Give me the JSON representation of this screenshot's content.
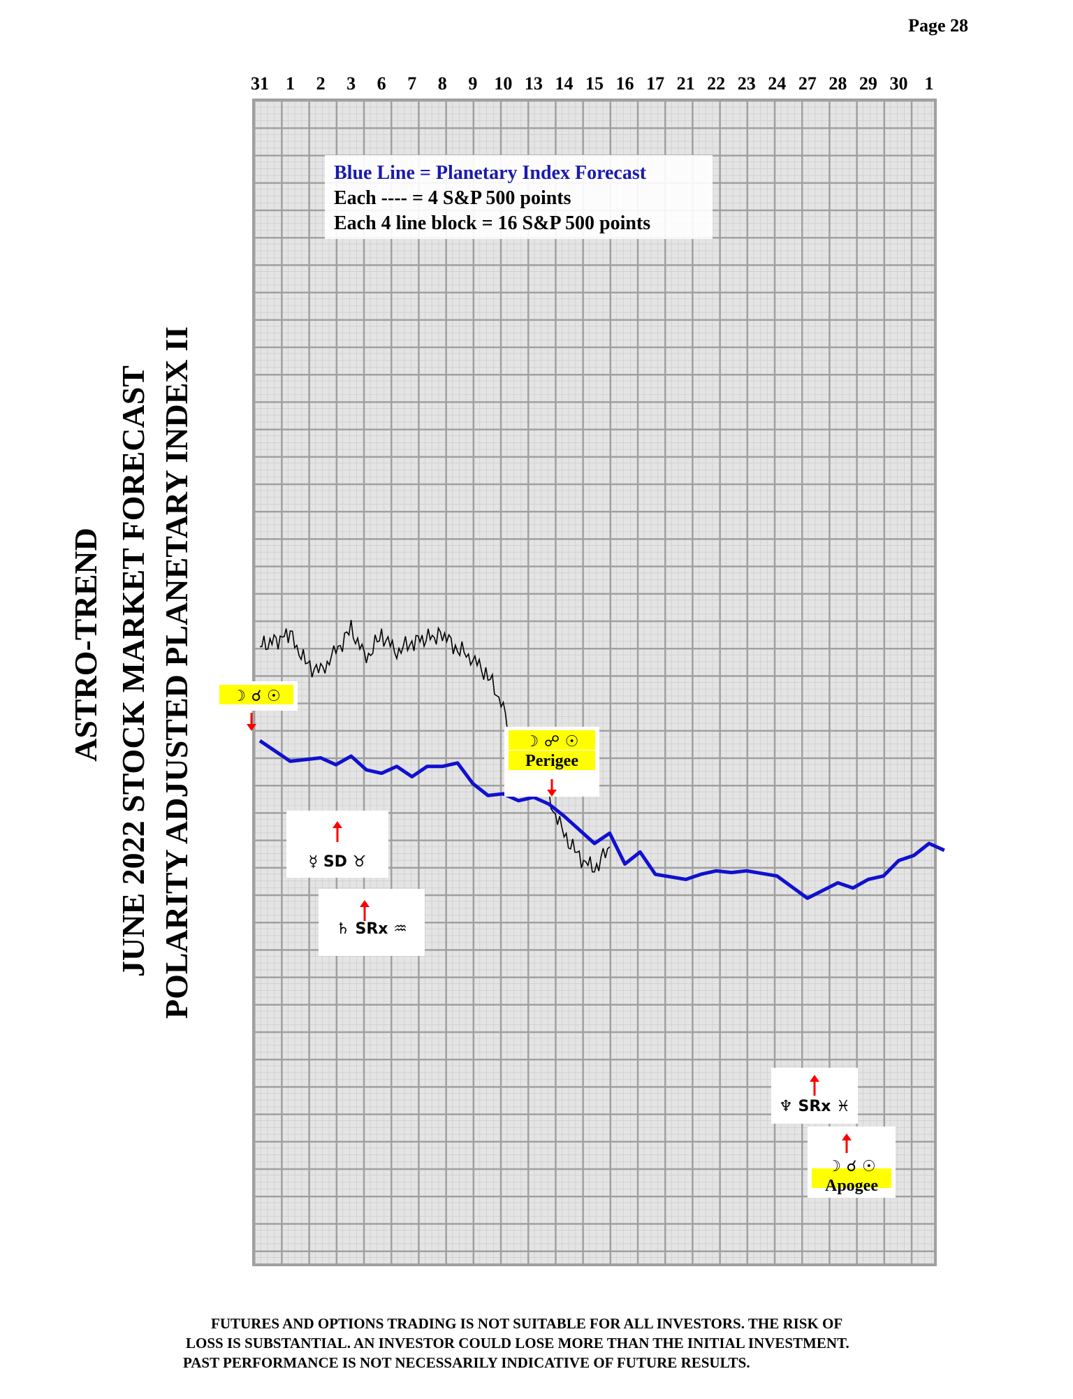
{
  "page": {
    "number_label": "Page  28"
  },
  "titles": {
    "line1": "ASTRO-TREND",
    "line2": "JUNE 2022  STOCK MARKET FORECAST",
    "line3": "POLARITY ADJUSTED PLANETARY INDEX II"
  },
  "legend": {
    "line1": "Blue Line = Planetary Index Forecast",
    "line2": "Each ---- = 4 S&P 500 points",
    "line3": "Each 4 line block =  16  S&P 500 points"
  },
  "annotations": [
    {
      "id": "moon-conj-sun-start",
      "text": "☽ ☌ ☉",
      "caption": "",
      "arrow": "down"
    },
    {
      "id": "mercury-direct-taurus",
      "text": "☿  SD  ♉",
      "caption": "",
      "arrow": "up"
    },
    {
      "id": "saturn-retro-aquarius",
      "text": "♄  SRx  ♒",
      "caption": "",
      "arrow": "up"
    },
    {
      "id": "perigee",
      "text": "☽ ☍ ☉",
      "caption": "Perigee",
      "arrow": "down"
    },
    {
      "id": "neptune-retro-pisces",
      "text": "♆  SRx  ♓",
      "caption": "",
      "arrow": "up"
    },
    {
      "id": "apogee",
      "text": "☽ ☌ ☉",
      "caption": "Apogee",
      "arrow": "up"
    }
  ],
  "colors": {
    "forecast_line": "#1010d0",
    "price_line": "#000000",
    "grid_minor": "#c8c8c8",
    "grid_major": "#a0a0a0",
    "highlight": "#ffff00",
    "arrow": "#ff0000"
  },
  "disclaimer": {
    "line1": "FUTURES AND OPTIONS TRADING IS NOT SUITABLE FOR ALL INVESTORS.  THE RISK OF",
    "line2": "LOSS IS SUBSTANTIAL.  AN INVESTOR COULD LOSE MORE THAN THE INITIAL INVESTMENT.",
    "line3": "PAST PERFORMANCE IS NOT NECESSARILY INDICATIVE OF FUTURE RESULTS."
  },
  "chart_data": {
    "type": "line",
    "title": "",
    "x_tick_labels": [
      "31",
      "1",
      "2",
      "3",
      "6",
      "7",
      "8",
      "9",
      "10",
      "13",
      "14",
      "15",
      "16",
      "17",
      "21",
      "22",
      "23",
      "24",
      "27",
      "28",
      "29",
      "30",
      "1"
    ],
    "grid": true,
    "series": [
      {
        "name": "Planetary Index Forecast",
        "color": "#1010d0",
        "values": [
          [
            "31",
            0
          ],
          [
            "1",
            -12
          ],
          [
            "2",
            -10
          ],
          [
            "2",
            -14
          ],
          [
            "3",
            -9
          ],
          [
            "3",
            -17
          ],
          [
            "6",
            -19
          ],
          [
            "6",
            -15
          ],
          [
            "7",
            -21
          ],
          [
            "7",
            -15
          ],
          [
            "8",
            -15
          ],
          [
            "8",
            -13
          ],
          [
            "9",
            -25
          ],
          [
            "9",
            -32
          ],
          [
            "10",
            -31
          ],
          [
            "10",
            -35
          ],
          [
            "13",
            -33
          ],
          [
            "13",
            -37
          ],
          [
            "14",
            -44
          ],
          [
            "15",
            -60
          ],
          [
            "15",
            -54
          ],
          [
            "16",
            -72
          ],
          [
            "16",
            -65
          ],
          [
            "17",
            -78
          ],
          [
            "21",
            -81
          ],
          [
            "21",
            -78
          ],
          [
            "22",
            -76
          ],
          [
            "22",
            -77
          ],
          [
            "23",
            -76
          ],
          [
            "24",
            -79
          ],
          [
            "27",
            -92
          ],
          [
            "28",
            -83
          ],
          [
            "28",
            -86
          ],
          [
            "29",
            -81
          ],
          [
            "29",
            -79
          ],
          [
            "30",
            -70
          ],
          [
            "30",
            -67
          ],
          [
            "1",
            -60
          ],
          [
            "1",
            -64
          ]
        ]
      },
      {
        "name": "",
        "color": "#000000",
        "values": [
          [
            "31",
            55
          ],
          [
            "1",
            62
          ],
          [
            "1",
            45
          ],
          [
            "2",
            40
          ],
          [
            "2",
            52
          ],
          [
            "3",
            65
          ],
          [
            "3",
            48
          ],
          [
            "6",
            62
          ],
          [
            "6",
            52
          ],
          [
            "7",
            58
          ],
          [
            "8",
            62
          ],
          [
            "8",
            54
          ],
          [
            "9",
            48
          ],
          [
            "9",
            38
          ],
          [
            "10",
            20
          ],
          [
            "10",
            -10
          ],
          [
            "10",
            -15
          ],
          [
            "13",
            -12
          ],
          [
            "13",
            -34
          ],
          [
            "14",
            -55
          ],
          [
            "14",
            -68
          ],
          [
            "15",
            -75
          ],
          [
            "15",
            -62
          ]
        ]
      }
    ]
  }
}
